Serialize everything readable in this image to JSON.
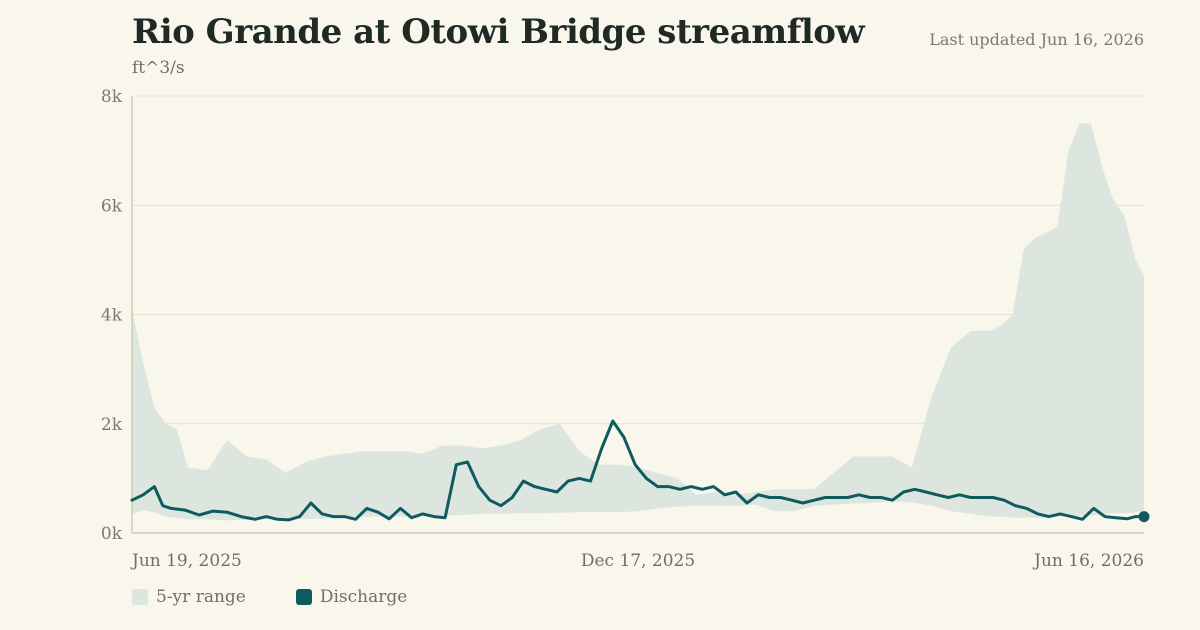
{
  "header": {
    "title": "Rio Grande at Otowi Bridge streamflow",
    "updated": "Last updated Jun 16, 2026",
    "unit": "ft^3/s"
  },
  "legend": {
    "range_label": "5-yr range",
    "discharge_label": "Discharge"
  },
  "colors": {
    "background": "#f9f6ec",
    "band": "#dce6df",
    "line": "#0e5a5f",
    "grid": "#e6e1d0",
    "axis": "#cfcab6"
  },
  "chart_data": {
    "type": "area",
    "title": "Rio Grande at Otowi Bridge streamflow",
    "ylabel": "ft^3/s",
    "ylim": [
      0,
      8000
    ],
    "yticks": [
      0,
      2000,
      4000,
      6000,
      8000
    ],
    "ytick_labels": [
      "0k",
      "2k",
      "4k",
      "6k",
      "8k"
    ],
    "xlim": [
      "2025-06-19",
      "2026-06-16"
    ],
    "xticks": [
      "2025-06-19",
      "2025-12-17",
      "2026-06-16"
    ],
    "xtick_labels": [
      "Jun 19, 2025",
      "Dec 17, 2025",
      "Jun 16, 2026"
    ],
    "grid": true,
    "legend_position": "bottom-left",
    "series": [
      {
        "name": "5-yr range",
        "kind": "band",
        "x": [
          "2025-06-19",
          "2025-06-23",
          "2025-06-27",
          "2025-07-01",
          "2025-07-05",
          "2025-07-09",
          "2025-07-16",
          "2025-07-23",
          "2025-07-30",
          "2025-08-06",
          "2025-08-13",
          "2025-08-20",
          "2025-08-27",
          "2025-09-03",
          "2025-09-10",
          "2025-09-17",
          "2025-09-24",
          "2025-10-01",
          "2025-10-08",
          "2025-10-15",
          "2025-10-22",
          "2025-10-29",
          "2025-11-05",
          "2025-11-12",
          "2025-11-19",
          "2025-11-26",
          "2025-12-03",
          "2025-12-10",
          "2025-12-17",
          "2025-12-24",
          "2025-12-31",
          "2026-01-07",
          "2026-01-14",
          "2026-01-21",
          "2026-01-28",
          "2026-02-04",
          "2026-02-11",
          "2026-02-18",
          "2026-02-25",
          "2026-03-04",
          "2026-03-11",
          "2026-03-18",
          "2026-03-25",
          "2026-04-01",
          "2026-04-08",
          "2026-04-15",
          "2026-04-22",
          "2026-04-26",
          "2026-04-30",
          "2026-05-04",
          "2026-05-08",
          "2026-05-12",
          "2026-05-16",
          "2026-05-20",
          "2026-05-24",
          "2026-05-28",
          "2026-06-01",
          "2026-06-05",
          "2026-06-09",
          "2026-06-13",
          "2026-06-16"
        ],
        "low": [
          350,
          420,
          380,
          300,
          280,
          250,
          250,
          230,
          240,
          250,
          250,
          260,
          260,
          280,
          300,
          300,
          300,
          320,
          320,
          330,
          350,
          350,
          360,
          360,
          370,
          380,
          380,
          380,
          400,
          450,
          480,
          500,
          500,
          500,
          520,
          400,
          400,
          500,
          520,
          540,
          550,
          580,
          560,
          500,
          400,
          350,
          300,
          300,
          280,
          280,
          280,
          280,
          300,
          300,
          300,
          320,
          340,
          360,
          360,
          380,
          400
        ],
        "high": [
          4100,
          3100,
          2300,
          2000,
          1900,
          1200,
          1150,
          1700,
          1400,
          1350,
          1100,
          1300,
          1400,
          1450,
          1500,
          1500,
          1500,
          1450,
          1600,
          1600,
          1550,
          1600,
          1700,
          1900,
          2000,
          1500,
          1250,
          1250,
          1200,
          1100,
          1000,
          700,
          750,
          700,
          750,
          800,
          800,
          800,
          1100,
          1400,
          1400,
          1400,
          1200,
          2500,
          3400,
          3700,
          3700,
          3800,
          4000,
          5200,
          5400,
          5500,
          5600,
          7000,
          7500,
          7500,
          6700,
          6100,
          5800,
          5000,
          4700
        ]
      },
      {
        "name": "Discharge",
        "kind": "line",
        "x": [
          "2025-06-19",
          "2025-06-23",
          "2025-06-27",
          "2025-06-30",
          "2025-07-03",
          "2025-07-08",
          "2025-07-13",
          "2025-07-18",
          "2025-07-23",
          "2025-07-28",
          "2025-08-02",
          "2025-08-06",
          "2025-08-10",
          "2025-08-14",
          "2025-08-18",
          "2025-08-22",
          "2025-08-26",
          "2025-08-30",
          "2025-09-03",
          "2025-09-07",
          "2025-09-11",
          "2025-09-15",
          "2025-09-19",
          "2025-09-23",
          "2025-09-27",
          "2025-10-01",
          "2025-10-05",
          "2025-10-09",
          "2025-10-13",
          "2025-10-17",
          "2025-10-21",
          "2025-10-25",
          "2025-10-29",
          "2025-11-02",
          "2025-11-06",
          "2025-11-10",
          "2025-11-14",
          "2025-11-18",
          "2025-11-22",
          "2025-11-26",
          "2025-11-30",
          "2025-12-04",
          "2025-12-08",
          "2025-12-12",
          "2025-12-16",
          "2025-12-20",
          "2025-12-24",
          "2025-12-28",
          "2026-01-01",
          "2026-01-05",
          "2026-01-09",
          "2026-01-13",
          "2026-01-17",
          "2026-01-21",
          "2026-01-25",
          "2026-01-29",
          "2026-02-02",
          "2026-02-06",
          "2026-02-10",
          "2026-02-14",
          "2026-02-18",
          "2026-02-22",
          "2026-02-26",
          "2026-03-02",
          "2026-03-06",
          "2026-03-10",
          "2026-03-14",
          "2026-03-18",
          "2026-03-22",
          "2026-03-26",
          "2026-03-30",
          "2026-04-03",
          "2026-04-07",
          "2026-04-11",
          "2026-04-15",
          "2026-04-19",
          "2026-04-23",
          "2026-04-27",
          "2026-05-01",
          "2026-05-05",
          "2026-05-09",
          "2026-05-13",
          "2026-05-17",
          "2026-05-21",
          "2026-05-25",
          "2026-05-29",
          "2026-06-02",
          "2026-06-06",
          "2026-06-10",
          "2026-06-13",
          "2026-06-16"
        ],
        "y": [
          600,
          700,
          850,
          500,
          450,
          420,
          330,
          400,
          380,
          300,
          250,
          300,
          250,
          240,
          300,
          550,
          350,
          300,
          300,
          250,
          450,
          380,
          260,
          450,
          280,
          350,
          300,
          280,
          1250,
          1300,
          850,
          600,
          500,
          650,
          950,
          850,
          800,
          750,
          950,
          1000,
          950,
          1550,
          2050,
          1750,
          1250,
          1000,
          850,
          850,
          800,
          850,
          800,
          850,
          700,
          750,
          550,
          700,
          650,
          650,
          600,
          550,
          600,
          650,
          650,
          650,
          700,
          650,
          650,
          600,
          750,
          800,
          750,
          700,
          650,
          700,
          650,
          650,
          650,
          600,
          500,
          450,
          350,
          300,
          350,
          300,
          250,
          450,
          300,
          280,
          260,
          300,
          300
        ]
      }
    ]
  }
}
